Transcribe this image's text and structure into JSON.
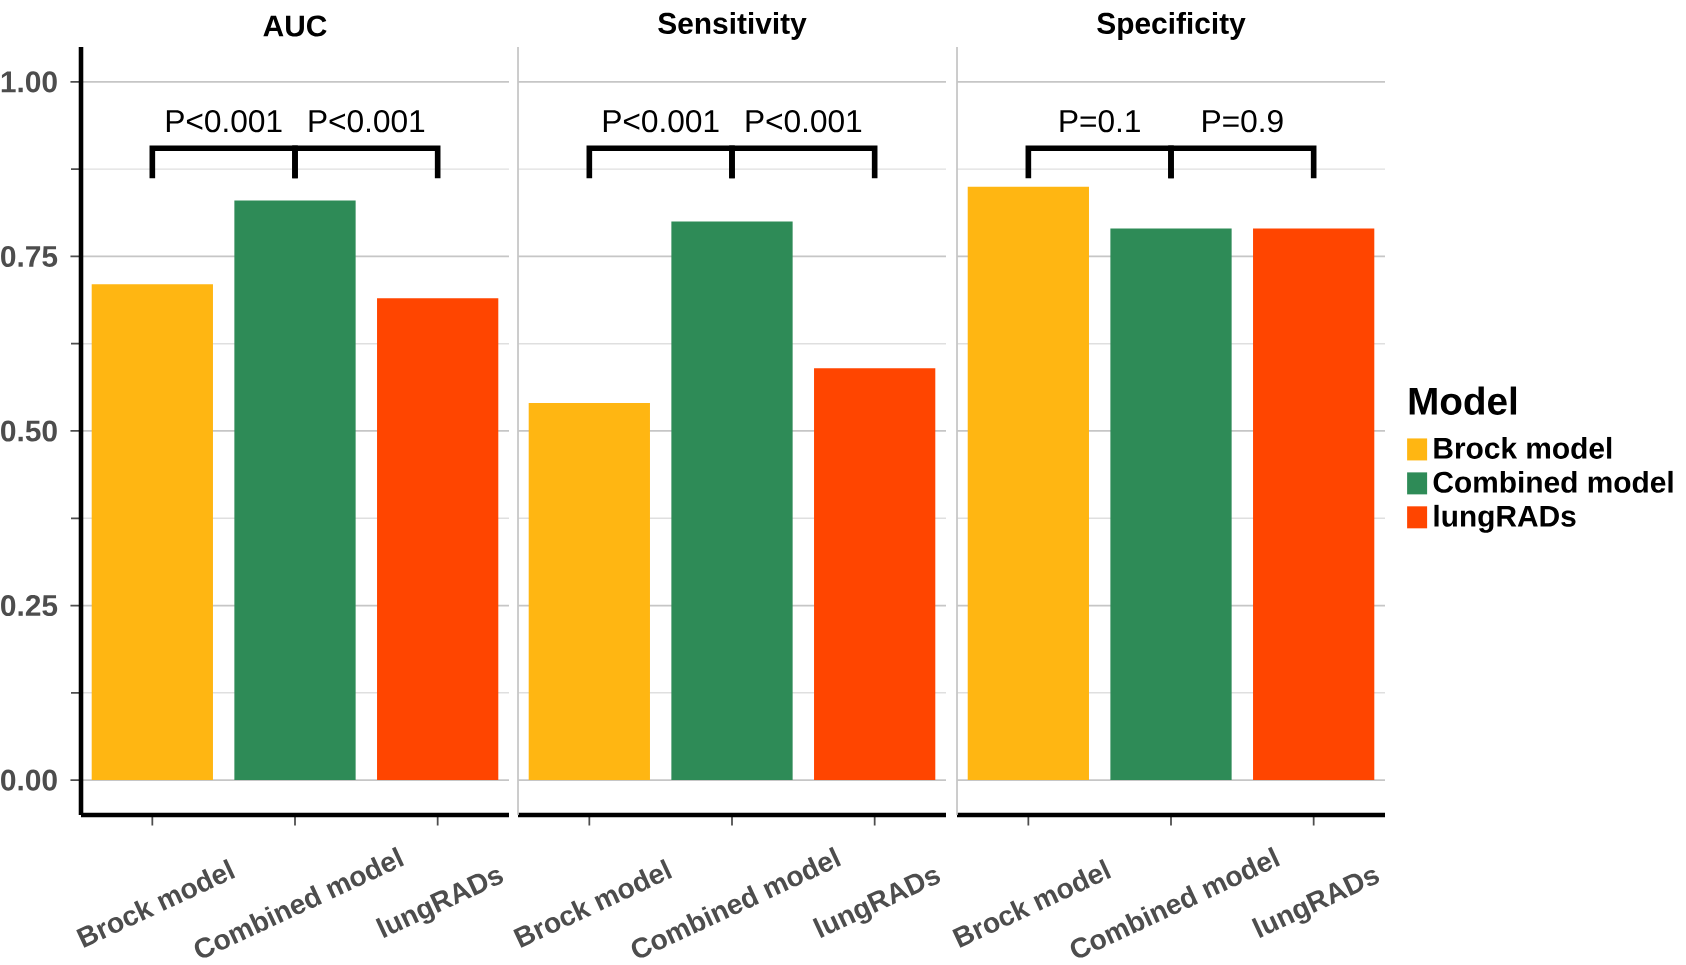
{
  "chart_data": [
    {
      "type": "bar",
      "title": "AUC",
      "categories": [
        "Brock model",
        "Combined model",
        "lungRADs"
      ],
      "series": [
        {
          "color": "#ffb612",
          "values": [
            0.71,
            null,
            null
          ]
        },
        {
          "color": "#2e8b57",
          "values": [
            null,
            0.83,
            null
          ]
        },
        {
          "color": "#ff4500",
          "values": [
            null,
            null,
            0.69
          ]
        }
      ],
      "ylim": [
        -0.05,
        1.05
      ],
      "yticks": [
        {
          "value": 0,
          "label": "0.00"
        },
        {
          "value": 0.25,
          "label": "0.25"
        },
        {
          "value": 0.5,
          "label": "0.50"
        },
        {
          "value": 0.75,
          "label": "0.75"
        },
        {
          "value": 1,
          "label": "1.00"
        }
      ],
      "grid": "y",
      "annotations": [
        "P<0.001",
        "P<0.001"
      ]
    },
    {
      "type": "bar",
      "title": "Sensitivity",
      "categories": [
        "Brock model",
        "Combined model",
        "lungRADs"
      ],
      "series": [
        {
          "color": "#ffb612",
          "values": [
            0.54,
            null,
            null
          ]
        },
        {
          "color": "#2e8b57",
          "values": [
            null,
            0.8,
            null
          ]
        },
        {
          "color": "#ff4500",
          "values": [
            null,
            null,
            0.59
          ]
        }
      ],
      "ylim": [
        -0.05,
        1.05
      ],
      "yticks": [
        {
          "value": 0,
          "label": null
        },
        {
          "value": 0.25,
          "label": null
        },
        {
          "value": 0.5,
          "label": null
        },
        {
          "value": 0.75,
          "label": null
        },
        {
          "value": 1,
          "label": null
        }
      ],
      "grid": "y",
      "tick_labels": "x",
      "annotations": [
        "P<0.001",
        "P<0.001"
      ]
    },
    {
      "type": "bar",
      "title": "Specificity",
      "categories": [
        "Brock model",
        "Combined model",
        "lungRADs"
      ],
      "series": [
        {
          "name": "Brock model",
          "color": "#ffb612",
          "values": [
            0.85,
            null,
            null
          ]
        },
        {
          "name": "Combined model",
          "color": "#2e8b57",
          "values": [
            null,
            0.79,
            null
          ]
        },
        {
          "name": "lungRADs",
          "color": "#ff4500",
          "values": [
            null,
            null,
            0.79
          ]
        }
      ],
      "ylim": [
        -0.05,
        1.05
      ],
      "yticks": [
        {
          "value": 0,
          "label": null
        },
        {
          "value": 0.25,
          "label": null
        },
        {
          "value": 0.5,
          "label": null
        },
        {
          "value": 0.75,
          "label": null
        },
        {
          "value": 1,
          "label": null
        }
      ],
      "grid": "y",
      "tick_labels": "x",
      "annotations": [
        "P=0.1",
        "P=0.9"
      ],
      "legend": "right",
      "legend_title": "Model"
    }
  ]
}
